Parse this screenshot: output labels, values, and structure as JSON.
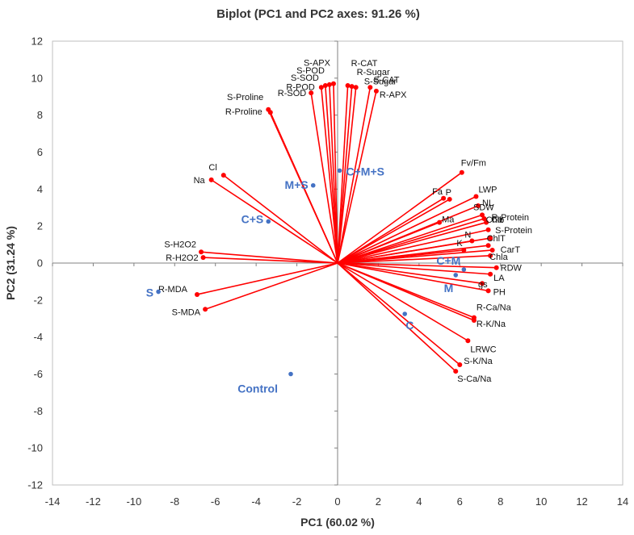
{
  "chart_data": {
    "type": "scatter",
    "title": "Biplot (PC1 and PC2 axes: 91.26 %)",
    "xlabel": "PC1 (60.02 %)",
    "ylabel": "PC2 (31.24 %)",
    "xlim": [
      -14,
      14
    ],
    "ylim": [
      -12,
      12
    ],
    "xticks": [
      -14,
      -12,
      -10,
      -8,
      -6,
      -4,
      -2,
      0,
      2,
      4,
      6,
      8,
      10,
      12,
      14
    ],
    "yticks": [
      -12,
      -10,
      -8,
      -6,
      -4,
      -2,
      0,
      2,
      4,
      6,
      8,
      10,
      12
    ],
    "grid": false,
    "colors": {
      "variables": "#ff0000",
      "observations": "#4472c4",
      "axes": "#808080",
      "frame": "#bfbfbf"
    },
    "series": [
      {
        "name": "Variables",
        "kind": "vectors",
        "points": [
          {
            "label": "S-APX",
            "x": -0.2,
            "y": 9.7
          },
          {
            "label": "R-CAT",
            "x": 0.5,
            "y": 9.6
          },
          {
            "label": "S-POD",
            "x": -0.4,
            "y": 9.65
          },
          {
            "label": "R-Sugar",
            "x": 0.7,
            "y": 9.55
          },
          {
            "label": "S-SOD",
            "x": -0.6,
            "y": 9.6
          },
          {
            "label": "S-Sugar",
            "x": 0.9,
            "y": 9.5
          },
          {
            "label": "R-POD",
            "x": -0.8,
            "y": 9.5
          },
          {
            "label": "S-CAT",
            "x": 1.6,
            "y": 9.5
          },
          {
            "label": "R-SOD",
            "x": -1.3,
            "y": 9.2
          },
          {
            "label": "R-APX",
            "x": 1.9,
            "y": 9.3
          },
          {
            "label": "S-Proline",
            "x": -3.4,
            "y": 8.3
          },
          {
            "label": "R-Proline",
            "x": -3.3,
            "y": 8.15
          },
          {
            "label": "Cl",
            "x": -5.6,
            "y": 4.75
          },
          {
            "label": "Na",
            "x": -6.2,
            "y": 4.5
          },
          {
            "label": "Fv/Fm",
            "x": 6.1,
            "y": 4.9
          },
          {
            "label": "Fa",
            "x": 5.2,
            "y": 3.5
          },
          {
            "label": "P",
            "x": 5.5,
            "y": 3.45
          },
          {
            "label": "LWP",
            "x": 6.8,
            "y": 3.6
          },
          {
            "label": "NL",
            "x": 6.9,
            "y": 3.1
          },
          {
            "label": "SDW",
            "x": 7.1,
            "y": 2.6
          },
          {
            "label": "Ma",
            "x": 5.0,
            "y": 2.2
          },
          {
            "label": "Ca",
            "x": 7.3,
            "y": 2.2
          },
          {
            "label": "R-Protein",
            "x": 7.2,
            "y": 2.4
          },
          {
            "label": "Chlb",
            "x": 7.4,
            "y": 1.8
          },
          {
            "label": "N",
            "x": 6.6,
            "y": 1.2
          },
          {
            "label": "S-Protein",
            "x": 7.5,
            "y": 1.35
          },
          {
            "label": "K",
            "x": 6.2,
            "y": 0.7
          },
          {
            "label": "ChlT",
            "x": 7.4,
            "y": 0.95
          },
          {
            "label": "CarT",
            "x": 7.6,
            "y": 0.7
          },
          {
            "label": "Chla",
            "x": 7.5,
            "y": 0.4
          },
          {
            "label": "RDW",
            "x": 7.8,
            "y": -0.25
          },
          {
            "label": "LA",
            "x": 7.5,
            "y": -0.6
          },
          {
            "label": "gs",
            "x": 7.1,
            "y": -1.1
          },
          {
            "label": "PH",
            "x": 7.4,
            "y": -1.5
          },
          {
            "label": "R-Ca/Na",
            "x": 6.7,
            "y": -2.95
          },
          {
            "label": "R-K/Na",
            "x": 6.7,
            "y": -3.1
          },
          {
            "label": "LRWC",
            "x": 6.4,
            "y": -4.2
          },
          {
            "label": "S-K/Na",
            "x": 6.0,
            "y": -5.5
          },
          {
            "label": "S-Ca/Na",
            "x": 5.8,
            "y": -5.85
          },
          {
            "label": "S-H2O2",
            "x": -6.7,
            "y": 0.6
          },
          {
            "label": "R-H2O2",
            "x": -6.6,
            "y": 0.3
          },
          {
            "label": "R-MDA",
            "x": -6.9,
            "y": -1.7
          },
          {
            "label": "S-MDA",
            "x": -6.5,
            "y": -2.5
          }
        ]
      },
      {
        "name": "Observations",
        "kind": "points",
        "points": [
          {
            "label": "C+M+S",
            "x": 0.1,
            "y": 5.0
          },
          {
            "label": "M+S",
            "x": -1.2,
            "y": 4.2
          },
          {
            "label": "C+S",
            "x": -3.4,
            "y": 2.25
          },
          {
            "label": "C+M",
            "x": 6.2,
            "y": -0.35
          },
          {
            "label": "M",
            "x": 5.8,
            "y": -0.65
          },
          {
            "label": "S",
            "x": -8.8,
            "y": -1.55
          },
          {
            "label": "C",
            "x": 3.3,
            "y": -2.75
          },
          {
            "label": "Control",
            "x": -2.3,
            "y": -6.0
          }
        ]
      }
    ]
  }
}
